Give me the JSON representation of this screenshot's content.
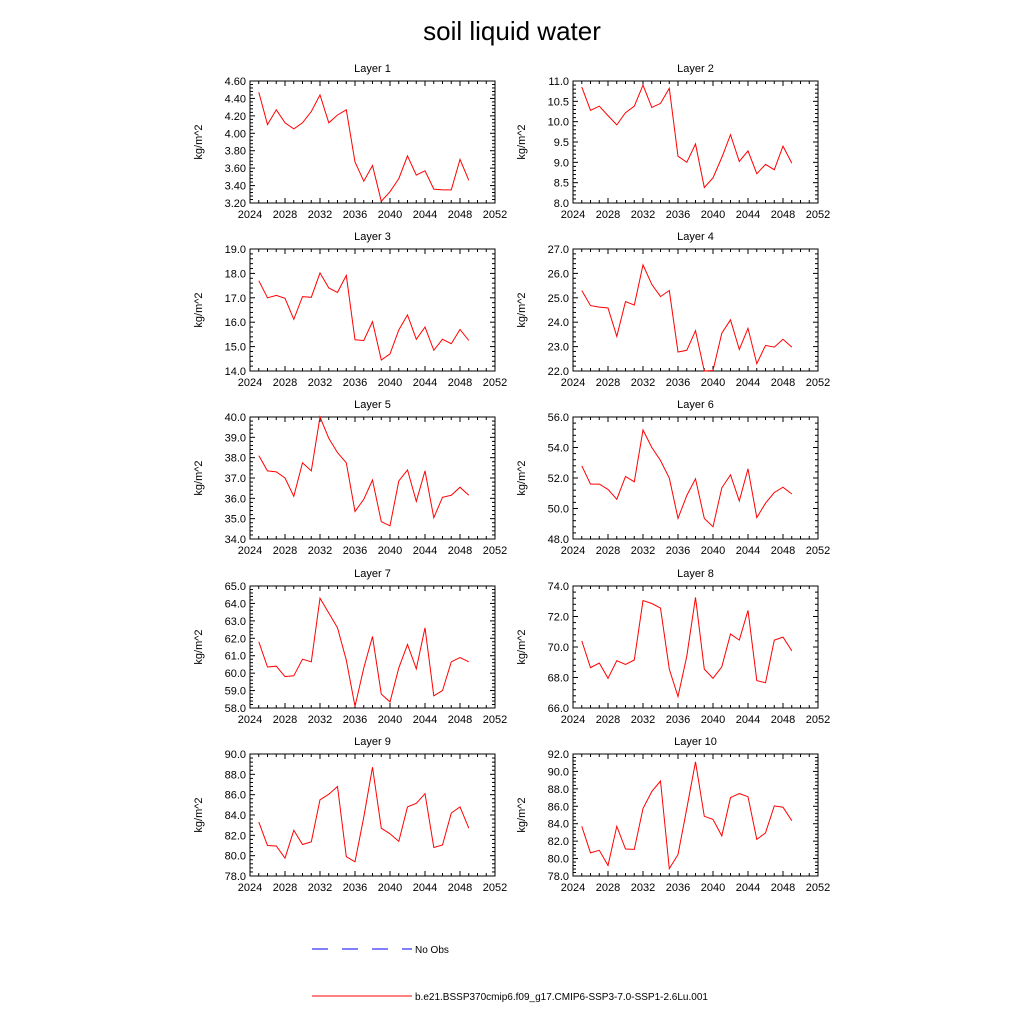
{
  "title": "soil liquid water",
  "legend": {
    "obs_label": "No Obs",
    "model_label": "b.e21.BSSP370cmip6.f09_g17.CMIP6-SSP3-7.0-SSP1-2.6Lu.001",
    "model_color": "#ff0000",
    "obs_color": "#0000ff"
  },
  "chart_data": [
    {
      "type": "line",
      "title": "Layer 1",
      "ylabel": "kg/m^2",
      "xlim": [
        2024,
        2052
      ],
      "ylim": [
        3.2,
        4.6
      ],
      "xticks": [
        "2024",
        "2028",
        "2032",
        "2036",
        "2040",
        "2044",
        "2048",
        "2052"
      ],
      "yticks": [
        "3.20",
        "3.40",
        "3.60",
        "3.80",
        "4.00",
        "4.20",
        "4.40",
        "4.60"
      ],
      "series": [
        {
          "x": [
            2025,
            2026,
            2027,
            2028,
            2029,
            2030,
            2031,
            2032,
            2033,
            2034,
            2035,
            2036,
            2037,
            2038,
            2039,
            2040,
            2041,
            2042,
            2043,
            2044,
            2045,
            2046,
            2047,
            2048,
            2049
          ],
          "y": [
            4.47,
            4.1,
            4.27,
            4.12,
            4.05,
            4.12,
            4.25,
            4.44,
            4.12,
            4.21,
            4.27,
            3.67,
            3.45,
            3.63,
            3.22,
            3.33,
            3.48,
            3.74,
            3.52,
            3.57,
            3.36,
            3.35,
            3.35,
            3.7,
            3.46
          ]
        }
      ]
    },
    {
      "type": "line",
      "title": "Layer 2",
      "ylabel": "kg/m^2",
      "xlim": [
        2024,
        2052
      ],
      "ylim": [
        8.0,
        11.0
      ],
      "xticks": [
        "2024",
        "2028",
        "2032",
        "2036",
        "2040",
        "2044",
        "2048",
        "2052"
      ],
      "yticks": [
        "8.0",
        "8.5",
        "9.0",
        "9.5",
        "10.0",
        "10.5",
        "11.0"
      ],
      "series": [
        {
          "x": [
            2025,
            2026,
            2027,
            2028,
            2029,
            2030,
            2031,
            2032,
            2033,
            2034,
            2035,
            2036,
            2037,
            2038,
            2039,
            2040,
            2041,
            2042,
            2043,
            2044,
            2045,
            2046,
            2047,
            2048,
            2049
          ],
          "y": [
            10.85,
            10.28,
            10.38,
            10.15,
            9.92,
            10.22,
            10.38,
            10.9,
            10.35,
            10.45,
            10.82,
            9.15,
            9.0,
            9.45,
            8.38,
            8.62,
            9.12,
            9.68,
            9.02,
            9.28,
            8.72,
            8.95,
            8.82,
            9.4,
            8.98
          ]
        }
      ]
    },
    {
      "type": "line",
      "title": "Layer 3",
      "ylabel": "kg/m^2",
      "xlim": [
        2024,
        2052
      ],
      "ylim": [
        14.0,
        19.0
      ],
      "xticks": [
        "2024",
        "2028",
        "2032",
        "2036",
        "2040",
        "2044",
        "2048",
        "2052"
      ],
      "yticks": [
        "14.0",
        "15.0",
        "16.0",
        "17.0",
        "18.0",
        "19.0"
      ],
      "series": [
        {
          "x": [
            2025,
            2026,
            2027,
            2028,
            2029,
            2030,
            2031,
            2032,
            2033,
            2034,
            2035,
            2036,
            2037,
            2038,
            2039,
            2040,
            2041,
            2042,
            2043,
            2044,
            2045,
            2046,
            2047,
            2048,
            2049
          ],
          "y": [
            17.7,
            17.0,
            17.1,
            16.98,
            16.12,
            17.05,
            17.02,
            18.02,
            17.4,
            17.22,
            17.92,
            15.28,
            15.25,
            16.02,
            14.45,
            14.7,
            15.68,
            16.3,
            15.3,
            15.8,
            14.85,
            15.3,
            15.12,
            15.7,
            15.25
          ]
        }
      ]
    },
    {
      "type": "line",
      "title": "Layer 4",
      "ylabel": "kg/m^2",
      "xlim": [
        2024,
        2052
      ],
      "ylim": [
        22.0,
        27.0
      ],
      "xticks": [
        "2024",
        "2028",
        "2032",
        "2036",
        "2040",
        "2044",
        "2048",
        "2052"
      ],
      "yticks": [
        "22.0",
        "23.0",
        "24.0",
        "25.0",
        "26.0",
        "27.0"
      ],
      "series": [
        {
          "x": [
            2025,
            2026,
            2027,
            2028,
            2029,
            2030,
            2031,
            2032,
            2033,
            2034,
            2035,
            2036,
            2037,
            2038,
            2039,
            2040,
            2041,
            2042,
            2043,
            2044,
            2045,
            2046,
            2047,
            2048,
            2049
          ],
          "y": [
            25.3,
            24.68,
            24.62,
            24.58,
            23.42,
            24.85,
            24.7,
            26.35,
            25.55,
            25.05,
            25.3,
            22.78,
            22.85,
            23.65,
            22.0,
            22.02,
            23.55,
            24.1,
            22.88,
            23.75,
            22.3,
            23.05,
            22.98,
            23.3,
            22.98
          ]
        }
      ]
    },
    {
      "type": "line",
      "title": "Layer 5",
      "ylabel": "kg/m^2",
      "xlim": [
        2024,
        2052
      ],
      "ylim": [
        34.0,
        40.0
      ],
      "xticks": [
        "2024",
        "2028",
        "2032",
        "2036",
        "2040",
        "2044",
        "2048",
        "2052"
      ],
      "yticks": [
        "34.0",
        "35.0",
        "36.0",
        "37.0",
        "38.0",
        "39.0",
        "40.0"
      ],
      "series": [
        {
          "x": [
            2025,
            2026,
            2027,
            2028,
            2029,
            2030,
            2031,
            2032,
            2033,
            2034,
            2035,
            2036,
            2037,
            2038,
            2039,
            2040,
            2041,
            2042,
            2043,
            2044,
            2045,
            2046,
            2047,
            2048,
            2049
          ],
          "y": [
            38.1,
            37.35,
            37.3,
            37.0,
            36.1,
            37.75,
            37.35,
            40.0,
            38.95,
            38.25,
            37.75,
            35.35,
            35.95,
            36.9,
            34.85,
            34.65,
            36.85,
            37.4,
            35.85,
            37.35,
            35.05,
            36.05,
            36.15,
            36.55,
            36.15
          ]
        }
      ]
    },
    {
      "type": "line",
      "title": "Layer 6",
      "ylabel": "kg/m^2",
      "xlim": [
        2024,
        2052
      ],
      "ylim": [
        48.0,
        56.0
      ],
      "xticks": [
        "2024",
        "2028",
        "2032",
        "2036",
        "2040",
        "2044",
        "2048",
        "2052"
      ],
      "yticks": [
        "48.0",
        "50.0",
        "52.0",
        "54.0",
        "56.0"
      ],
      "series": [
        {
          "x": [
            2025,
            2026,
            2027,
            2028,
            2029,
            2030,
            2031,
            2032,
            2033,
            2034,
            2035,
            2036,
            2037,
            2038,
            2039,
            2040,
            2041,
            2042,
            2043,
            2044,
            2045,
            2046,
            2047,
            2048,
            2049
          ],
          "y": [
            52.8,
            51.6,
            51.6,
            51.25,
            50.6,
            52.1,
            51.75,
            55.15,
            54.0,
            53.15,
            52.0,
            49.35,
            50.85,
            51.95,
            49.35,
            48.8,
            51.35,
            52.2,
            50.5,
            52.6,
            49.4,
            50.35,
            51.05,
            51.4,
            50.95
          ]
        }
      ]
    },
    {
      "type": "line",
      "title": "Layer 7",
      "ylabel": "kg/m^2",
      "xlim": [
        2024,
        2052
      ],
      "ylim": [
        58.0,
        65.0
      ],
      "xticks": [
        "2024",
        "2028",
        "2032",
        "2036",
        "2040",
        "2044",
        "2048",
        "2052"
      ],
      "yticks": [
        "58.0",
        "59.0",
        "60.0",
        "61.0",
        "62.0",
        "63.0",
        "64.0",
        "65.0"
      ],
      "series": [
        {
          "x": [
            2025,
            2026,
            2027,
            2028,
            2029,
            2030,
            2031,
            2032,
            2033,
            2034,
            2035,
            2036,
            2037,
            2038,
            2039,
            2040,
            2041,
            2042,
            2043,
            2044,
            2045,
            2046,
            2047,
            2048,
            2049
          ],
          "y": [
            61.8,
            60.35,
            60.4,
            59.8,
            59.85,
            60.8,
            60.65,
            64.3,
            63.45,
            62.6,
            60.75,
            58.1,
            60.3,
            62.1,
            58.8,
            58.35,
            60.3,
            61.65,
            60.25,
            62.6,
            58.7,
            59.0,
            60.65,
            60.9,
            60.65
          ]
        }
      ]
    },
    {
      "type": "line",
      "title": "Layer 8",
      "ylabel": "kg/m^2",
      "xlim": [
        2024,
        2052
      ],
      "ylim": [
        66.0,
        74.0
      ],
      "xticks": [
        "2024",
        "2028",
        "2032",
        "2036",
        "2040",
        "2044",
        "2048",
        "2052"
      ],
      "yticks": [
        "66.0",
        "68.0",
        "70.0",
        "72.0",
        "74.0"
      ],
      "series": [
        {
          "x": [
            2025,
            2026,
            2027,
            2028,
            2029,
            2030,
            2031,
            2032,
            2033,
            2034,
            2035,
            2036,
            2037,
            2038,
            2039,
            2040,
            2041,
            2042,
            2043,
            2044,
            2045,
            2046,
            2047,
            2048,
            2049
          ],
          "y": [
            70.4,
            68.65,
            68.95,
            67.95,
            69.1,
            68.85,
            69.15,
            73.05,
            72.85,
            72.55,
            68.55,
            66.75,
            69.4,
            73.25,
            68.55,
            67.95,
            68.7,
            70.85,
            70.45,
            72.4,
            67.8,
            67.65,
            70.45,
            70.65,
            69.75
          ]
        }
      ]
    },
    {
      "type": "line",
      "title": "Layer 9",
      "ylabel": "kg/m^2",
      "xlim": [
        2024,
        2052
      ],
      "ylim": [
        78.0,
        90.0
      ],
      "xticks": [
        "2024",
        "2028",
        "2032",
        "2036",
        "2040",
        "2044",
        "2048",
        "2052"
      ],
      "yticks": [
        "78.0",
        "80.0",
        "82.0",
        "84.0",
        "86.0",
        "88.0",
        "90.0"
      ],
      "series": [
        {
          "x": [
            2025,
            2026,
            2027,
            2028,
            2029,
            2030,
            2031,
            2032,
            2033,
            2034,
            2035,
            2036,
            2037,
            2038,
            2039,
            2040,
            2041,
            2042,
            2043,
            2044,
            2045,
            2046,
            2047,
            2048,
            2049
          ],
          "y": [
            83.3,
            81.0,
            80.95,
            79.75,
            82.5,
            81.1,
            81.35,
            85.5,
            86.05,
            86.8,
            79.9,
            79.4,
            83.8,
            88.7,
            82.7,
            82.15,
            81.4,
            84.8,
            85.15,
            86.1,
            80.8,
            81.05,
            84.2,
            84.8,
            82.7
          ]
        }
      ]
    },
    {
      "type": "line",
      "title": "Layer 10",
      "ylabel": "kg/m^2",
      "xlim": [
        2024,
        2052
      ],
      "ylim": [
        78.0,
        92.0
      ],
      "xticks": [
        "2024",
        "2028",
        "2032",
        "2036",
        "2040",
        "2044",
        "2048",
        "2052"
      ],
      "yticks": [
        "78.0",
        "80.0",
        "82.0",
        "84.0",
        "86.0",
        "88.0",
        "90.0",
        "92.0"
      ],
      "series": [
        {
          "x": [
            2025,
            2026,
            2027,
            2028,
            2029,
            2030,
            2031,
            2032,
            2033,
            2034,
            2035,
            2036,
            2037,
            2038,
            2039,
            2040,
            2041,
            2042,
            2043,
            2044,
            2045,
            2046,
            2047,
            2048,
            2049
          ],
          "y": [
            83.7,
            80.65,
            80.95,
            79.2,
            83.7,
            81.1,
            81.05,
            85.75,
            87.7,
            88.9,
            78.85,
            80.45,
            85.75,
            91.1,
            84.85,
            84.5,
            82.6,
            87.0,
            87.45,
            87.1,
            82.2,
            82.95,
            86.05,
            85.9,
            84.35
          ]
        }
      ]
    }
  ]
}
